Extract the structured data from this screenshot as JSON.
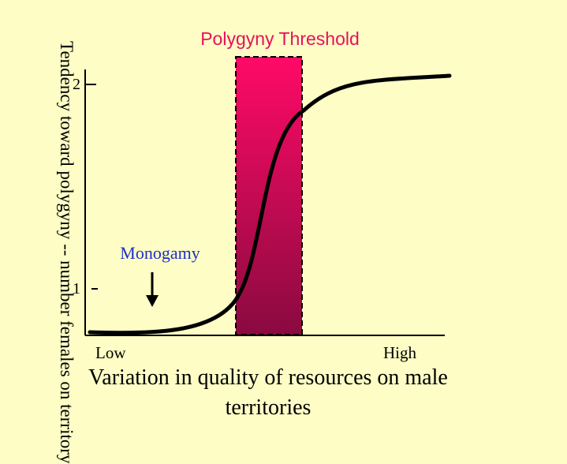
{
  "diagram": {
    "threshold_label": "Polygyny Threshold",
    "monogamy_label": "Monogamy",
    "y_axis_label": "Tendency toward polygyny -- number females on territory",
    "x_axis_label": "Variation in quality of resources on male territories",
    "x_ticks": {
      "low": "Low",
      "high": "High"
    },
    "y_ticks": {
      "one": "1",
      "two": "2"
    },
    "colors": {
      "background": "#fdfdc5",
      "threshold_text": "#e8115b",
      "monogamy_text": "#1d30c8",
      "box_top": "#ff0a66",
      "box_bottom": "#8a0a40"
    }
  }
}
